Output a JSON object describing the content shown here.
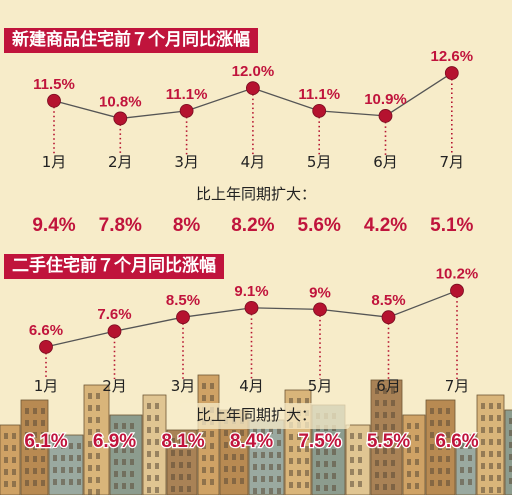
{
  "colors": {
    "background": "#f7ecc9",
    "accent": "#c0143c",
    "marker": "#b5122f",
    "line": "#555555",
    "axis_text": "#222222",
    "city_palette": [
      "#cfa265",
      "#b88a52",
      "#9aa9a0",
      "#d9b57a",
      "#8c9c8e",
      "#e0c592",
      "#a98256"
    ]
  },
  "chart_data": [
    {
      "type": "line",
      "title": "新建商品住宅前７个月同比涨幅",
      "categories": [
        "1月",
        "2月",
        "3月",
        "4月",
        "5月",
        "6月",
        "7月"
      ],
      "series": [
        {
          "values": [
            11.5,
            10.8,
            11.1,
            12.0,
            11.1,
            10.9,
            12.6
          ],
          "labels": [
            "11.5%",
            "10.8%",
            "11.1%",
            "12.0%",
            "11.1%",
            "10.9%",
            "12.6%"
          ]
        }
      ],
      "ylim": [
        10.5,
        12.8
      ],
      "subtitle": "比上年同期扩大：",
      "expansion": [
        "9.4%",
        "7.8%",
        "8%",
        "8.2%",
        "5.6%",
        "4.2%",
        "5.1%"
      ]
    },
    {
      "type": "line",
      "title": "二手住宅前７个月同比涨幅",
      "categories": [
        "1月",
        "2月",
        "3月",
        "4月",
        "5月",
        "6月",
        "7月"
      ],
      "series": [
        {
          "values": [
            6.6,
            7.6,
            8.5,
            9.1,
            9.0,
            8.5,
            10.2
          ],
          "labels": [
            "6.6%",
            "7.6%",
            "8.5%",
            "9.1%",
            "9%",
            "8.5%",
            "10.2%"
          ]
        }
      ],
      "ylim": [
        5.5,
        10.5
      ],
      "subtitle": "比上年同期扩大：",
      "expansion": [
        "6.1%",
        "6.9%",
        "8.1%",
        "8.4%",
        "7.5%",
        "5.5%",
        "6.6%"
      ]
    }
  ]
}
